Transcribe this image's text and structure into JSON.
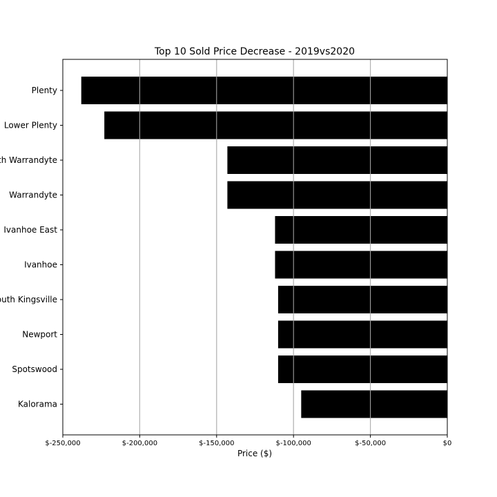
{
  "chart_data": {
    "type": "bar",
    "orientation": "horizontal",
    "title": "Top 10 Sold Price Decrease - 2019vs2020",
    "xlabel": "Price ($)",
    "ylabel": "",
    "xlim": [
      -250000,
      0
    ],
    "x_ticks": [
      -250000,
      -200000,
      -150000,
      -100000,
      -50000,
      0
    ],
    "x_tick_labels": [
      "$-250,000",
      "$-200,000",
      "$-150,000",
      "$-100,000",
      "$-50,000",
      "$0"
    ],
    "grid": "vertical",
    "bar_color": "#000000",
    "categories": [
      "Plenty",
      "Lower Plenty",
      "North Warrandyte",
      "Warrandyte",
      "Ivanhoe East",
      "Ivanhoe",
      "South Kingsville",
      "Newport",
      "Spotswood",
      "Kalorama"
    ],
    "values": [
      -238000,
      -223000,
      -143000,
      -143000,
      -112000,
      -112000,
      -110000,
      -110000,
      -110000,
      -95000
    ]
  }
}
